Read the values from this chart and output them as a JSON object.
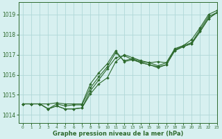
{
  "title": "Graphe pression niveau de la mer (hPa)",
  "bg_color": "#d7f0f0",
  "grid_color": "#b0d8d8",
  "line_color": "#2d6a2d",
  "marker": "D",
  "xlim": [
    -0.5,
    23
  ],
  "ylim": [
    1013.6,
    1019.6
  ],
  "xticks": [
    0,
    1,
    2,
    3,
    4,
    5,
    6,
    7,
    8,
    9,
    10,
    11,
    12,
    13,
    14,
    15,
    16,
    17,
    18,
    19,
    20,
    21,
    22,
    23
  ],
  "yticks": [
    1014,
    1015,
    1016,
    1017,
    1018,
    1019
  ],
  "series": [
    [
      1014.55,
      1014.55,
      1014.55,
      1014.3,
      1014.45,
      1014.3,
      1014.3,
      1014.35,
      1015.05,
      1015.55,
      1015.85,
      1016.65,
      1017.0,
      1016.85,
      1016.7,
      1016.6,
      1016.45,
      1016.6,
      1017.25,
      1017.45,
      1017.6,
      1018.25,
      1018.9,
      1019.1
    ],
    [
      1014.55,
      1014.55,
      1014.55,
      1014.3,
      1014.45,
      1014.3,
      1014.3,
      1014.35,
      1015.2,
      1015.75,
      1016.3,
      1016.85,
      1016.95,
      1016.75,
      1016.6,
      1016.5,
      1016.4,
      1016.5,
      1017.2,
      1017.4,
      1017.55,
      1018.15,
      1018.8,
      1019.1
    ],
    [
      1014.55,
      1014.55,
      1014.55,
      1014.3,
      1014.55,
      1014.45,
      1014.5,
      1014.5,
      1015.35,
      1015.9,
      1016.4,
      1017.1,
      1016.7,
      1016.8,
      1016.65,
      1016.6,
      1016.65,
      1016.6,
      1017.3,
      1017.45,
      1017.75,
      1018.35,
      1019.0,
      1019.2
    ],
    [
      1014.55,
      1014.55,
      1014.55,
      1014.55,
      1014.6,
      1014.55,
      1014.55,
      1014.55,
      1015.55,
      1016.1,
      1016.55,
      1017.2,
      1016.65,
      1016.75,
      1016.6,
      1016.5,
      1016.35,
      1016.5,
      1017.2,
      1017.4,
      1017.55,
      1018.15,
      1018.8,
      1019.1
    ]
  ]
}
